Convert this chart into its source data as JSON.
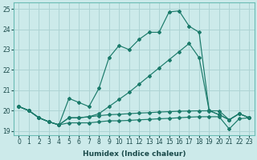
{
  "xlabel": "Humidex (Indice chaleur)",
  "ylabel": "",
  "bg_color": "#cceaea",
  "grid_color": "#aed4d4",
  "line_color": "#1a7a6a",
  "xlim": [
    -0.5,
    23.5
  ],
  "ylim": [
    18.8,
    25.3
  ],
  "xticks": [
    0,
    1,
    2,
    3,
    4,
    5,
    6,
    7,
    8,
    9,
    10,
    11,
    12,
    13,
    14,
    15,
    16,
    17,
    18,
    19,
    20,
    21,
    22,
    23
  ],
  "yticks": [
    19,
    20,
    21,
    22,
    23,
    24,
    25
  ],
  "series": {
    "s1": [
      20.2,
      20.0,
      19.65,
      19.45,
      19.3,
      20.6,
      20.4,
      20.2,
      21.1,
      22.6,
      23.2,
      23.0,
      23.5,
      23.85,
      23.85,
      24.85,
      24.9,
      24.15,
      23.85,
      20.0,
      19.8,
      19.55,
      19.85,
      19.65
    ],
    "s2": [
      20.2,
      20.0,
      19.65,
      19.45,
      19.3,
      19.65,
      19.65,
      19.7,
      19.85,
      20.2,
      20.55,
      20.9,
      21.3,
      21.7,
      22.1,
      22.5,
      22.9,
      23.3,
      22.6,
      20.0,
      19.8,
      19.55,
      19.85,
      19.65
    ],
    "s3": [
      20.2,
      20.0,
      19.65,
      19.45,
      19.3,
      19.65,
      19.65,
      19.7,
      19.75,
      19.8,
      19.82,
      19.85,
      19.88,
      19.9,
      19.93,
      19.95,
      19.97,
      19.98,
      19.99,
      19.99,
      19.99,
      19.55,
      19.85,
      19.65
    ],
    "s4": [
      20.2,
      20.0,
      19.65,
      19.45,
      19.3,
      19.4,
      19.4,
      19.4,
      19.45,
      19.5,
      19.5,
      19.52,
      19.55,
      19.57,
      19.6,
      19.62,
      19.65,
      19.68,
      19.7,
      19.7,
      19.7,
      19.1,
      19.6,
      19.65
    ]
  }
}
